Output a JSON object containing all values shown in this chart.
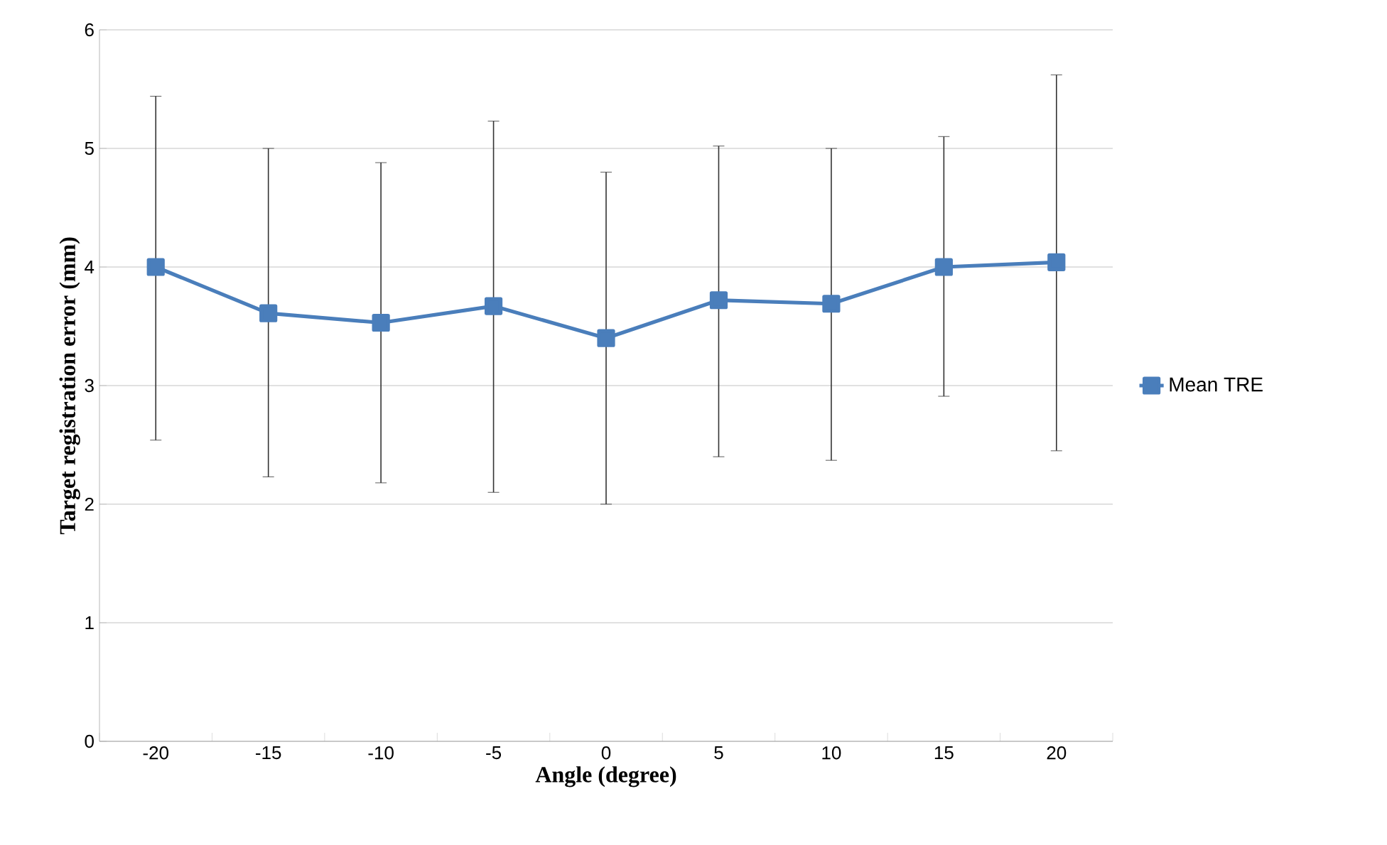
{
  "chart_data": {
    "type": "line",
    "xlabel": "Angle (degree)",
    "ylabel": "Target registration error (mm)",
    "categories": [
      "-20",
      "-15",
      "-10",
      "-5",
      "0",
      "5",
      "10",
      "15",
      "20"
    ],
    "series": [
      {
        "name": "Mean TRE",
        "color": "#4a7ebb",
        "values": [
          4.0,
          3.61,
          3.53,
          3.67,
          3.4,
          3.72,
          3.69,
          4.0,
          4.04
        ],
        "errors": [
          [
            2.54,
            5.44
          ],
          [
            2.23,
            5.0
          ],
          [
            2.18,
            4.88
          ],
          [
            2.1,
            5.23
          ],
          [
            2.0,
            4.8
          ],
          [
            2.4,
            5.02
          ],
          [
            2.37,
            5.0
          ],
          [
            2.91,
            5.1
          ],
          [
            2.45,
            5.62
          ]
        ]
      }
    ],
    "ylim": [
      0,
      6
    ],
    "yticks": [
      0,
      1,
      2,
      3,
      4,
      5,
      6
    ],
    "grid": "y",
    "legend": "right",
    "marker": "square",
    "line_style": "solid"
  }
}
